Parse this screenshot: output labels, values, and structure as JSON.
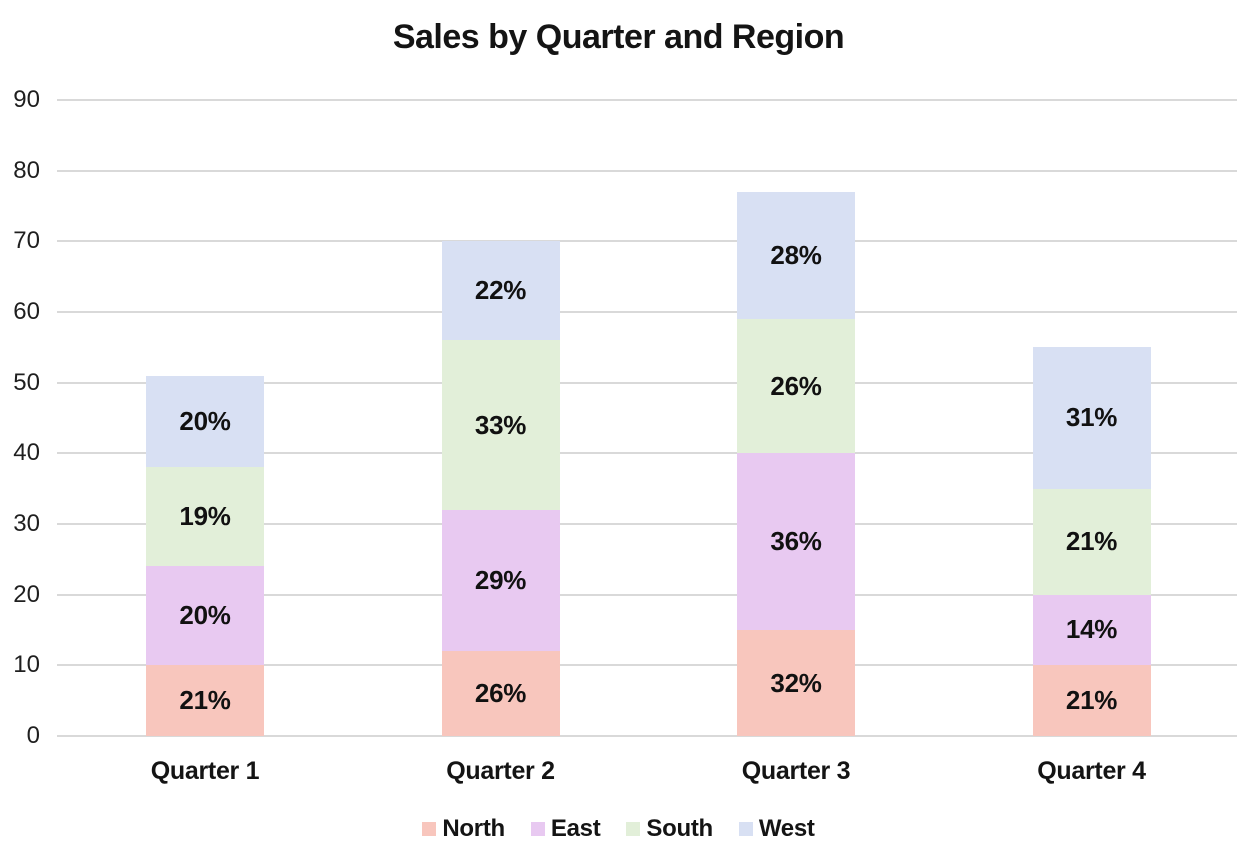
{
  "chart_data": {
    "type": "bar",
    "stacked": true,
    "title": "Sales by Quarter and Region",
    "categories": [
      "Quarter 1",
      "Quarter 2",
      "Quarter 3",
      "Quarter 4"
    ],
    "series": [
      {
        "name": "North",
        "color": "#f8c6bd",
        "values": [
          10,
          12,
          15,
          10
        ],
        "data_labels": [
          "21%",
          "26%",
          "32%",
          "21%"
        ]
      },
      {
        "name": "East",
        "color": "#e8c9f1",
        "values": [
          14,
          20,
          25,
          10
        ],
        "data_labels": [
          "20%",
          "29%",
          "36%",
          "14%"
        ]
      },
      {
        "name": "South",
        "color": "#e2efd9",
        "values": [
          14,
          24,
          19,
          15
        ],
        "data_labels": [
          "19%",
          "33%",
          "26%",
          "21%"
        ]
      },
      {
        "name": "West",
        "color": "#d8e0f3",
        "values": [
          13,
          14,
          18,
          20
        ],
        "data_labels": [
          "20%",
          "22%",
          "28%",
          "31%"
        ]
      }
    ],
    "ylim": [
      0,
      90
    ],
    "ytick_step": 10,
    "ytick_labels": [
      "0",
      "10",
      "20",
      "30",
      "40",
      "50",
      "60",
      "70",
      "80",
      "90"
    ],
    "grid": true,
    "legend_position": "bottom",
    "colors": {
      "gridline": "#d9d9d9",
      "text": "#141414",
      "background": "#ffffff"
    }
  }
}
